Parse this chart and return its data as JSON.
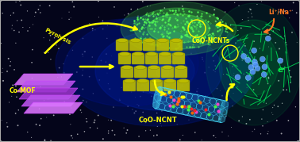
{
  "background_color": "#04051a",
  "border_color": "#aaaaaa",
  "labels": {
    "co_mof": "Co-MOF",
    "pyrolysis": "Pyrolysis",
    "coo_ncnt": "CoO-NCNT",
    "coo_nCNTs": "CoO-NCNTs",
    "li_na": "Li⁺/Na⁺",
    "electron": "e⁻"
  },
  "label_color_yellow": "#ffff00",
  "label_color_orange": "#ff7722",
  "label_color_green": "#00ee44",
  "arrow_color": "#ffff00",
  "mof_color1": "#dd77ff",
  "mof_color2": "#bb55ee",
  "mof_color3": "#9933cc",
  "cnt_cyan": "#44ddff",
  "cnt_blue_bg": "#003366",
  "cnt_pink": "#ff44cc",
  "cnt_green_dot": "#44ff44",
  "mof_2d_color": "#bbbb00",
  "nCNT_color": "#55ff55",
  "network_color": "#00dd55",
  "nebula_blue": "#0033aa",
  "nebula_center": "#0055cc"
}
